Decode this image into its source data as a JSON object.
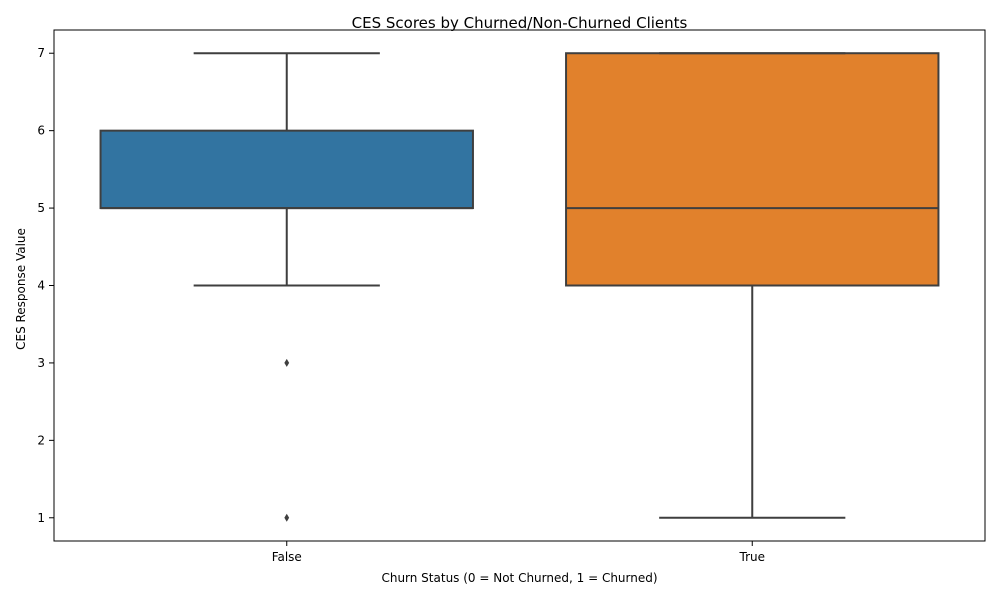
{
  "chart_data": {
    "type": "box",
    "title": "CES Scores by Churned/Non-Churned Clients",
    "xlabel": "Churn Status (0 = Not Churned, 1 = Churned)",
    "ylabel": "CES Response Value",
    "categories": [
      "False",
      "True"
    ],
    "ylim": [
      0.7,
      7.3
    ],
    "yticks": [
      1,
      2,
      3,
      4,
      5,
      6,
      7
    ],
    "grid": false,
    "legend": "none",
    "boxes": [
      {
        "category": "False",
        "whisker_low": 4,
        "q1": 5,
        "median": 5,
        "q3": 6,
        "whisker_high": 7,
        "outliers": [
          3,
          1
        ],
        "color": "#3274a1"
      },
      {
        "category": "True",
        "whisker_low": 1,
        "q1": 4,
        "median": 5,
        "q3": 7,
        "whisker_high": 7,
        "outliers": [],
        "color": "#e1812c"
      }
    ]
  }
}
